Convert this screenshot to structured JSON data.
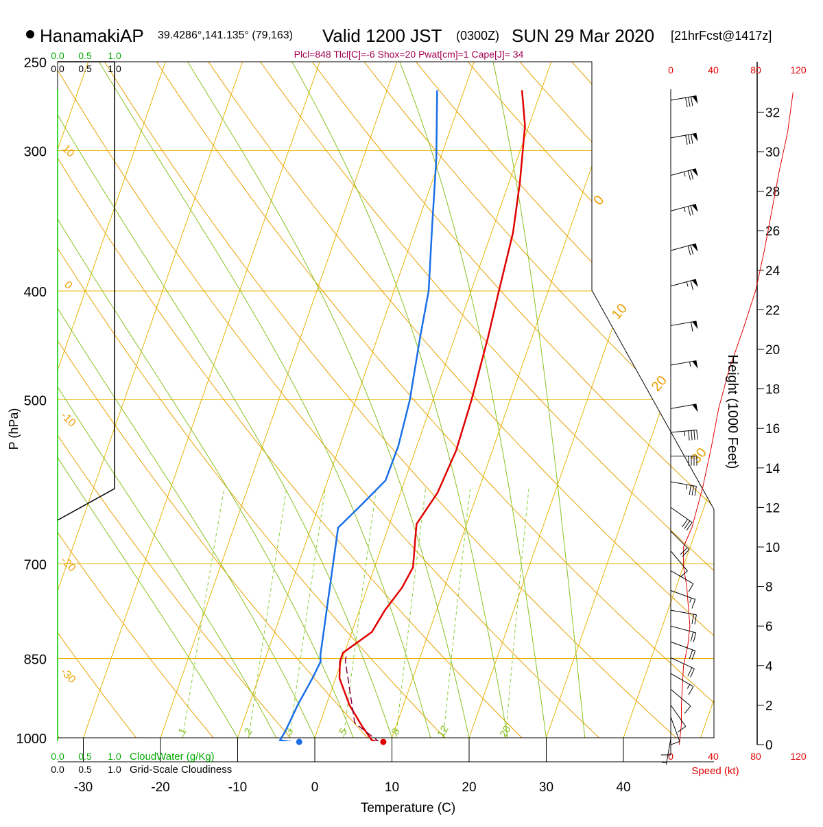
{
  "header": {
    "station": "HanamakiAP",
    "coords": "39.4286°,141.135° (79,163)",
    "valid": "Valid 1200 JST",
    "zulu": "(0300Z)",
    "date": "SUN 29 Mar 2020",
    "fcst": "[21hrFcst@1417z]",
    "indices": "Plcl=848 Tlcl[C]=-6 Shox=20 Pwat[cm]=1 Cape[J]= 34"
  },
  "colors": {
    "isobar": "#e8b400",
    "adiabat": "#e8a000",
    "moist": "#88c020",
    "mixing": "#88cc33",
    "temp": "#e00000",
    "dew": "#1a6fe8",
    "parcel": "#800040",
    "cloud": "#00aa00",
    "speed": "#e00000",
    "indices": "#a00050"
  },
  "chart_data": {
    "type": "skew-t",
    "xlabel": "Temperature (C)",
    "ylabel": "P (hPa)",
    "y2label": "Height (1000 Feet)",
    "x_ticks": [
      "-30",
      "-20",
      "-10",
      "0",
      "10",
      "20",
      "30",
      "40"
    ],
    "x_tick_values": [
      -30,
      -20,
      -10,
      0,
      10,
      20,
      30,
      40
    ],
    "p_ticks": [
      "250",
      "300",
      "400",
      "500",
      "700",
      "850",
      "1000"
    ],
    "p_tick_values": [
      250,
      300,
      400,
      500,
      700,
      850,
      1000
    ],
    "xlim": [
      -34,
      36
    ],
    "plim": [
      250,
      1000
    ],
    "height_ticks": [
      "0",
      "2",
      "4",
      "6",
      "8",
      "10",
      "12",
      "14",
      "16",
      "18",
      "20",
      "22",
      "24",
      "26",
      "28",
      "30",
      "32"
    ],
    "height_tick_values": [
      0,
      2,
      4,
      6,
      8,
      10,
      12,
      14,
      16,
      18,
      20,
      22,
      24,
      26,
      28,
      30,
      32
    ],
    "speed_ticks": [
      "0",
      "40",
      "80",
      "120"
    ],
    "speed_tick_values": [
      0,
      40,
      80,
      120
    ],
    "speed_label": "Speed (kt)",
    "dry_adiabat_labels": [
      {
        "label": "10",
        "x": -34,
        "p": 300
      },
      {
        "label": "0",
        "x": -34,
        "p": 395
      },
      {
        "label": "-10",
        "x": -34,
        "p": 520
      },
      {
        "label": "-20",
        "x": -34,
        "p": 700
      },
      {
        "label": "-30",
        "x": -34,
        "p": 880
      }
    ],
    "moist_labels": [
      {
        "label": "0",
        "x": 33,
        "p": 345
      },
      {
        "label": "10",
        "x": 32.5,
        "p": 440
      },
      {
        "label": "20",
        "x": 32,
        "p": 520
      },
      {
        "label": "30",
        "x": 32,
        "p": 630
      }
    ],
    "mixing_labels": [
      "1",
      "2",
      "3",
      "5",
      "8",
      "12",
      "20"
    ],
    "mixing_values": [
      1,
      2,
      3,
      5,
      8,
      12,
      20
    ],
    "temperature": [
      [
        8.7,
        1010
      ],
      [
        7.5,
        1005
      ],
      [
        5.5,
        975
      ],
      [
        3,
        935
      ],
      [
        0.5,
        885
      ],
      [
        -0.2,
        855
      ],
      [
        -0.2,
        840
      ],
      [
        2.6,
        805
      ],
      [
        3.3,
        770
      ],
      [
        4.5,
        735
      ],
      [
        5,
        705
      ],
      [
        4,
        665
      ],
      [
        3.5,
        645
      ],
      [
        4.8,
        605
      ],
      [
        5.3,
        555
      ],
      [
        5,
        500
      ],
      [
        4.3,
        440
      ],
      [
        3.6,
        400
      ],
      [
        2.8,
        355
      ],
      [
        1.4,
        320
      ],
      [
        -0.5,
        285
      ],
      [
        -2.5,
        265
      ]
    ],
    "parcel": [
      [
        8.7,
        1010
      ],
      [
        4.5,
        970
      ],
      [
        0.5,
        855
      ],
      [
        0.3,
        842
      ]
    ],
    "dewpoint": [
      [
        -2.2,
        1010
      ],
      [
        -4.4,
        1005
      ],
      [
        -4.1,
        985
      ],
      [
        -3.7,
        935
      ],
      [
        -3,
        885
      ],
      [
        -2.7,
        855
      ],
      [
        -3,
        845
      ],
      [
        -6.5,
        650
      ],
      [
        -4.5,
        620
      ],
      [
        -2.5,
        590
      ],
      [
        -2.4,
        550
      ],
      [
        -3,
        500
      ],
      [
        -4.5,
        440
      ],
      [
        -5.5,
        400
      ],
      [
        -8,
        350
      ],
      [
        -10.5,
        305
      ],
      [
        -13.5,
        265
      ]
    ],
    "cloud_water_label": "CloudWater (g/Kg)",
    "cloud_water_ticks": [
      "0.0",
      "0.5",
      "1.0"
    ],
    "cloudiness_label": "Grid-Scale Cloudiness",
    "cloudiness_ticks": [
      "0.0",
      "0.5",
      "1.0"
    ],
    "cloudiness_profile": [
      [
        0.0,
        250
      ],
      [
        1.0,
        250
      ],
      [
        1.0,
        600
      ],
      [
        0.0,
        640
      ]
    ],
    "cloud_water_profile": [
      [
        0.0,
        250
      ],
      [
        0.0,
        1000
      ]
    ],
    "speed_profile": [
      [
        8,
        0
      ],
      [
        10,
        1
      ],
      [
        10,
        2
      ],
      [
        12,
        4
      ],
      [
        16,
        5
      ],
      [
        18,
        6
      ],
      [
        15,
        8
      ],
      [
        12,
        9
      ],
      [
        12,
        10
      ],
      [
        20,
        11
      ],
      [
        30,
        13
      ],
      [
        38,
        15
      ],
      [
        45,
        17
      ],
      [
        55,
        19
      ],
      [
        68,
        21
      ],
      [
        80,
        23
      ],
      [
        88,
        25
      ],
      [
        95,
        27
      ],
      [
        102,
        29
      ],
      [
        110,
        31
      ],
      [
        115,
        33
      ]
    ],
    "wind_barbs": [
      {
        "h": 0.3,
        "dir": 170,
        "spd": 5
      },
      {
        "h": 0.8,
        "dir": 180,
        "spd": 8
      },
      {
        "h": 1.4,
        "dir": 200,
        "spd": 10
      },
      {
        "h": 2.0,
        "dir": 215,
        "spd": 10
      },
      {
        "h": 2.8,
        "dir": 230,
        "spd": 12
      },
      {
        "h": 3.6,
        "dir": 240,
        "spd": 15
      },
      {
        "h": 4.4,
        "dir": 245,
        "spd": 18
      },
      {
        "h": 5.2,
        "dir": 250,
        "spd": 20
      },
      {
        "h": 6.0,
        "dir": 255,
        "spd": 20
      },
      {
        "h": 6.8,
        "dir": 260,
        "spd": 18
      },
      {
        "h": 7.8,
        "dir": 250,
        "spd": 15
      },
      {
        "h": 8.8,
        "dir": 240,
        "spd": 12
      },
      {
        "h": 9.8,
        "dir": 220,
        "spd": 12
      },
      {
        "h": 10.8,
        "dir": 225,
        "spd": 20
      },
      {
        "h": 12.0,
        "dir": 235,
        "spd": 28
      },
      {
        "h": 13.3,
        "dir": 260,
        "spd": 35
      },
      {
        "h": 14.6,
        "dir": 270,
        "spd": 40
      },
      {
        "h": 15.8,
        "dir": 275,
        "spd": 45
      },
      {
        "h": 17.0,
        "dir": 280,
        "spd": 50
      },
      {
        "h": 19.2,
        "dir": 280,
        "spd": 55
      },
      {
        "h": 21.2,
        "dir": 280,
        "spd": 60
      },
      {
        "h": 23.2,
        "dir": 285,
        "spd": 65
      },
      {
        "h": 25.0,
        "dir": 285,
        "spd": 70
      },
      {
        "h": 27.0,
        "dir": 285,
        "spd": 75
      },
      {
        "h": 28.8,
        "dir": 285,
        "spd": 75
      },
      {
        "h": 30.7,
        "dir": 280,
        "spd": 80
      },
      {
        "h": 32.6,
        "dir": 280,
        "spd": 80
      }
    ]
  }
}
